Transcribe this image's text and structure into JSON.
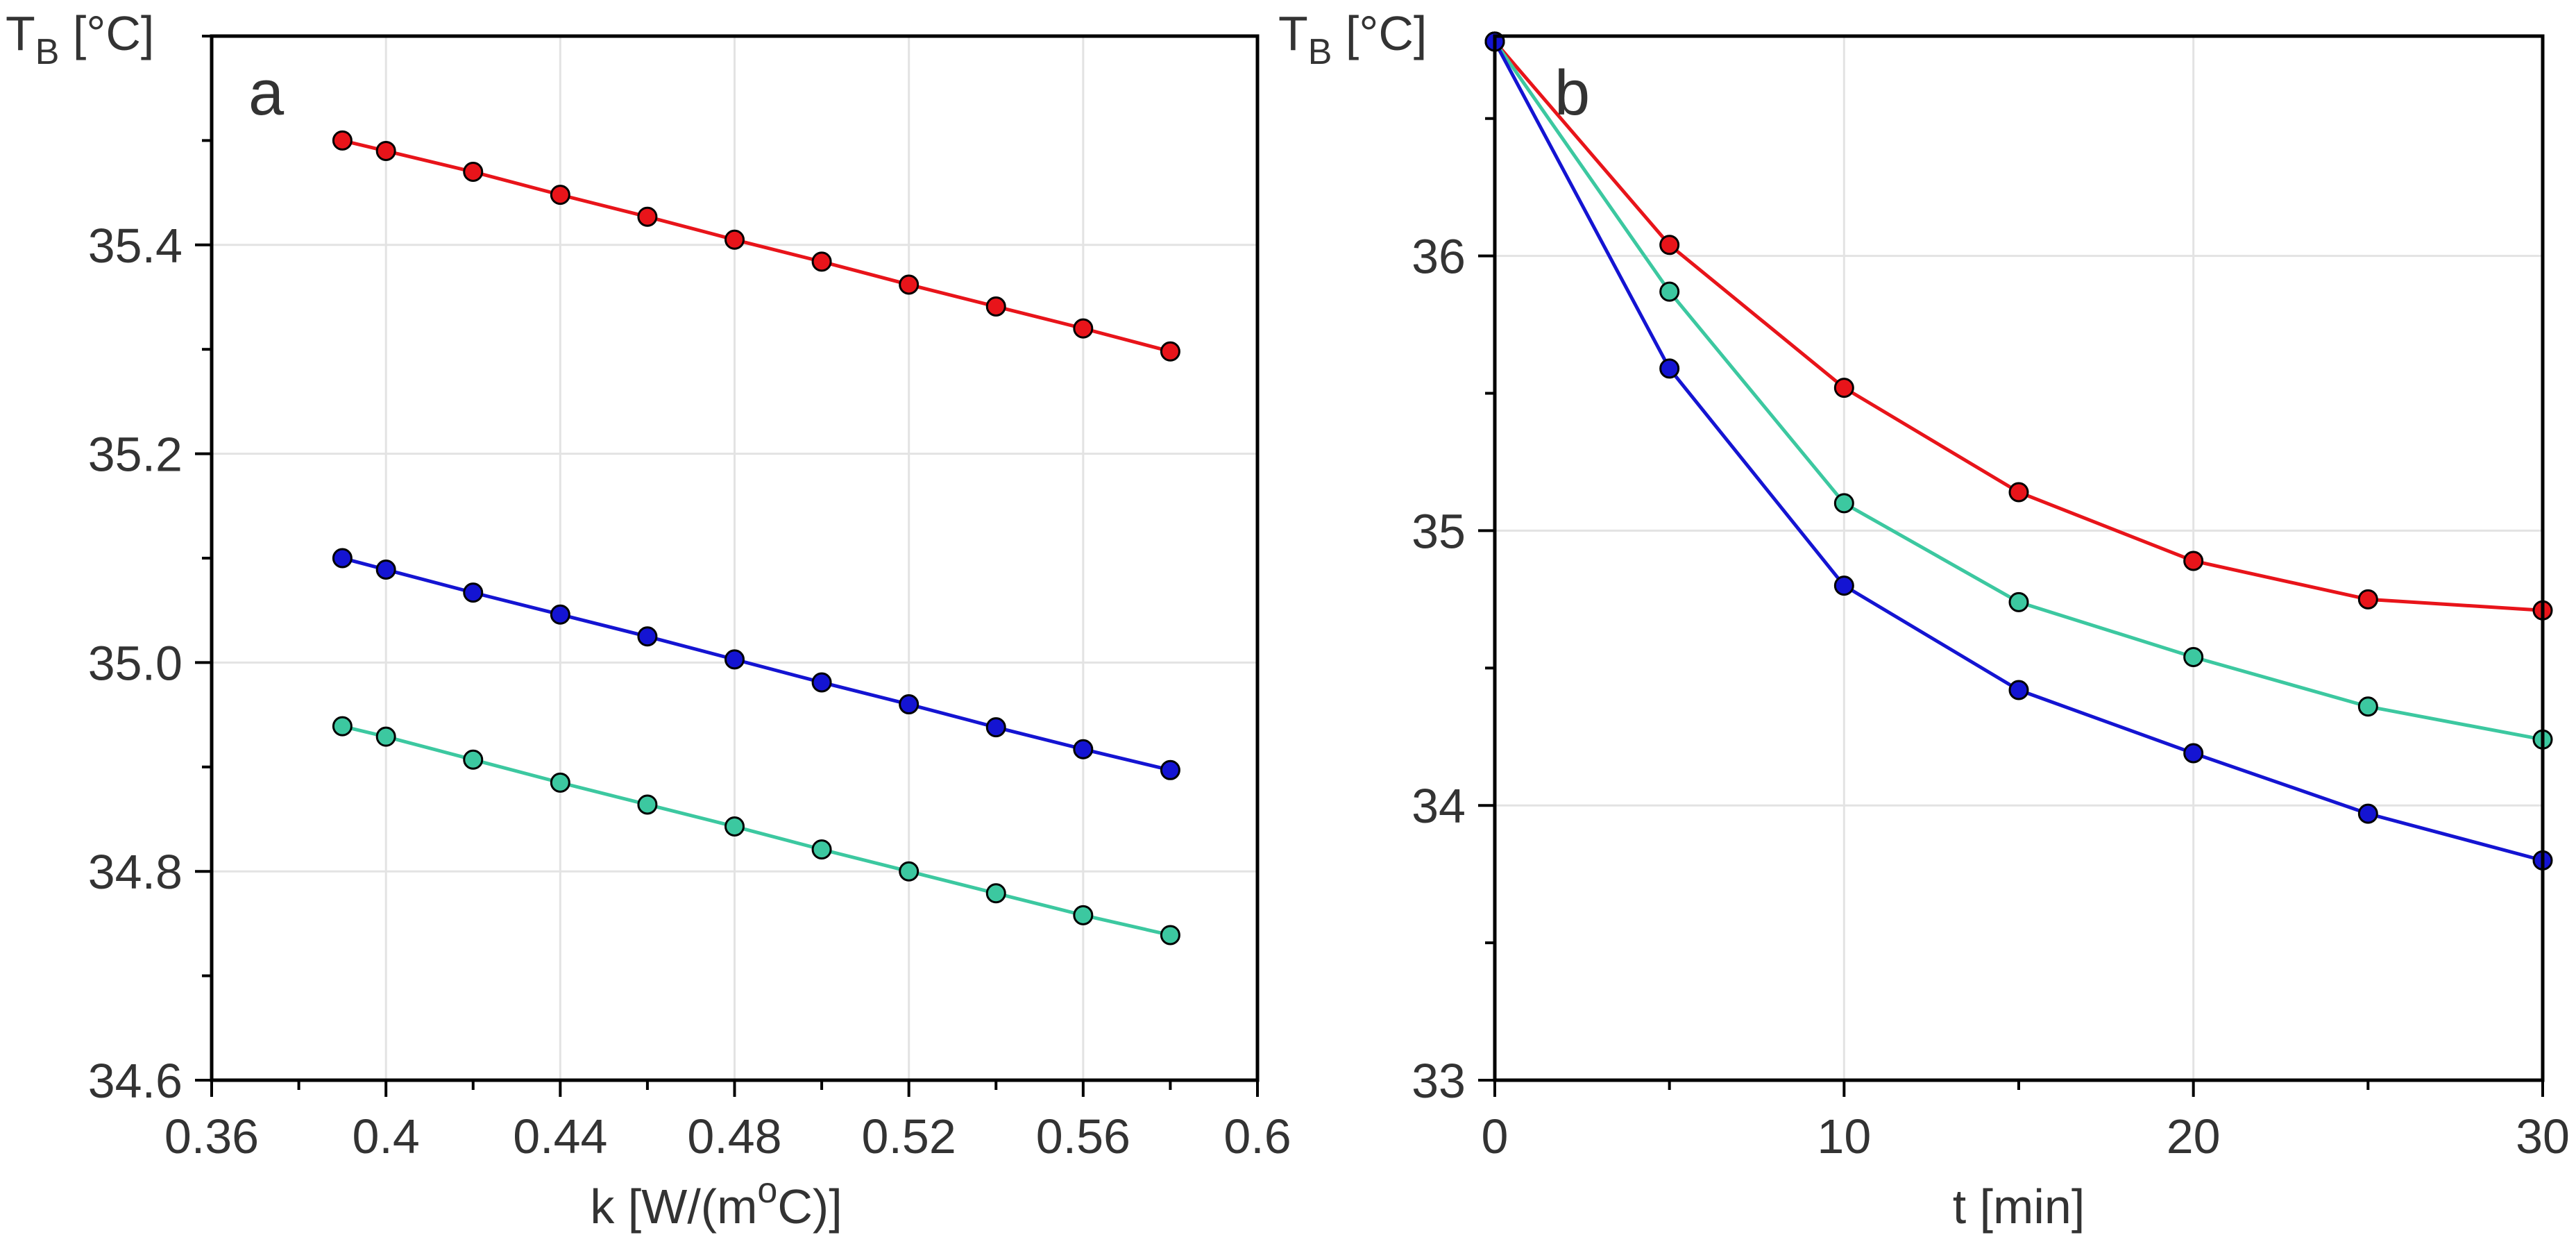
{
  "chart_data": [
    {
      "type": "line",
      "panel_label": "a",
      "ylabel_main": "T",
      "ylabel_sub": "B",
      "ylabel_unit": " [°C]",
      "xlabel_pre": "k [W/(m",
      "xlabel_sup": "o",
      "xlabel_post": "C)]",
      "xlim": [
        0.36,
        0.6
      ],
      "ylim": [
        34.6,
        35.6
      ],
      "xticks": [
        0.36,
        0.4,
        0.44,
        0.48,
        0.52,
        0.56,
        0.6
      ],
      "xtick_labels": [
        "0.36",
        "0.4",
        "0.44",
        "0.48",
        "0.52",
        "0.56",
        "0.6"
      ],
      "xminor": [
        0.38,
        0.42,
        0.46,
        0.5,
        0.54,
        0.58
      ],
      "yticks": [
        34.6,
        34.8,
        35.0,
        35.2,
        35.4
      ],
      "ytick_labels": [
        "34.6",
        "34.8",
        "35.0",
        "35.2",
        "35.4"
      ],
      "yminor": [
        34.7,
        34.9,
        35.1,
        35.3,
        35.5,
        35.6
      ],
      "xgrid": [
        0.4,
        0.44,
        0.48,
        0.52,
        0.56
      ],
      "ygrid": [
        34.8,
        35.0,
        35.2,
        35.4
      ],
      "series": [
        {
          "name": "red",
          "color": "#e8141a",
          "x": [
            0.39,
            0.4,
            0.42,
            0.44,
            0.46,
            0.48,
            0.5,
            0.52,
            0.54,
            0.56,
            0.58
          ],
          "values": [
            35.5,
            35.49,
            35.47,
            35.448,
            35.427,
            35.405,
            35.384,
            35.362,
            35.341,
            35.32,
            35.298
          ]
        },
        {
          "name": "blue",
          "color": "#1414d2",
          "x": [
            0.39,
            0.4,
            0.42,
            0.44,
            0.46,
            0.48,
            0.5,
            0.52,
            0.54,
            0.56,
            0.58
          ],
          "values": [
            35.1,
            35.089,
            35.067,
            35.046,
            35.025,
            35.003,
            34.981,
            34.96,
            34.938,
            34.917,
            34.897
          ]
        },
        {
          "name": "teal",
          "color": "#3cc8a0",
          "x": [
            0.39,
            0.4,
            0.42,
            0.44,
            0.46,
            0.48,
            0.5,
            0.52,
            0.54,
            0.56,
            0.58
          ],
          "values": [
            34.939,
            34.929,
            34.907,
            34.885,
            34.864,
            34.843,
            34.821,
            34.8,
            34.779,
            34.758,
            34.739
          ]
        }
      ]
    },
    {
      "type": "line",
      "panel_label": "b",
      "ylabel_main": "T",
      "ylabel_sub": "B",
      "ylabel_unit": " [°C]",
      "xlabel": "t [min]",
      "xlim": [
        0,
        30
      ],
      "ylim": [
        33,
        36.8
      ],
      "xticks": [
        0,
        10,
        20,
        30
      ],
      "xtick_labels": [
        "0",
        "10",
        "20",
        "30"
      ],
      "xminor": [
        5,
        15,
        25
      ],
      "yticks": [
        33,
        34,
        35,
        36
      ],
      "ytick_labels": [
        "33",
        "34",
        "35",
        "36"
      ],
      "yminor": [
        33.5,
        34.5,
        35.5,
        36.5
      ],
      "xgrid": [
        10,
        20
      ],
      "ygrid": [
        34,
        35,
        36
      ],
      "series": [
        {
          "name": "red",
          "color": "#e8141a",
          "x": [
            0,
            5,
            10,
            15,
            20,
            25,
            30
          ],
          "values": [
            36.78,
            36.04,
            35.52,
            35.14,
            34.89,
            34.75,
            34.71
          ]
        },
        {
          "name": "teal",
          "color": "#3cc8a0",
          "x": [
            0,
            5,
            10,
            15,
            20,
            25,
            30
          ],
          "values": [
            36.78,
            35.87,
            35.1,
            34.74,
            34.54,
            34.36,
            34.24
          ]
        },
        {
          "name": "blue",
          "color": "#1414d2",
          "x": [
            0,
            5,
            10,
            15,
            20,
            25,
            30
          ],
          "values": [
            36.78,
            35.59,
            34.8,
            34.42,
            34.19,
            33.97,
            33.8
          ]
        }
      ]
    }
  ]
}
